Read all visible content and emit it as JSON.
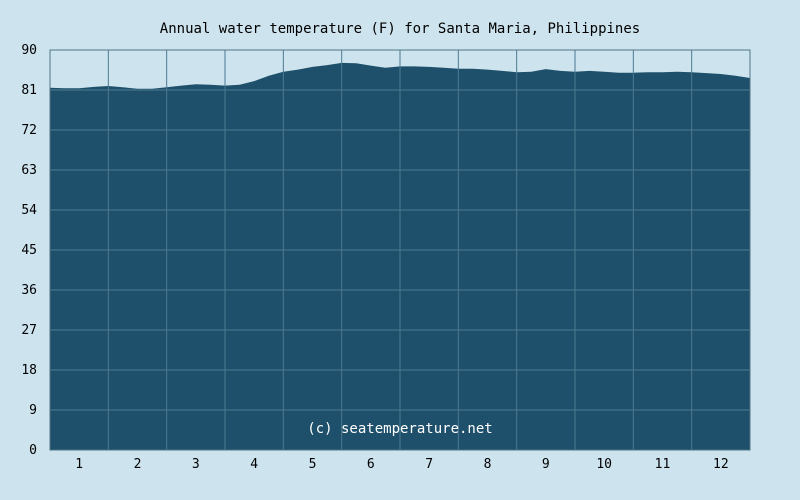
{
  "chart_data": {
    "type": "area",
    "title": "Annual water temperature (F) for Santa Maria, Philippines",
    "xlabel": "",
    "ylabel": "",
    "ylim": [
      0,
      90
    ],
    "y_ticks": [
      0,
      9,
      18,
      27,
      36,
      45,
      54,
      63,
      72,
      81,
      90
    ],
    "categories": [
      "1",
      "2",
      "3",
      "4",
      "5",
      "6",
      "7",
      "8",
      "9",
      "10",
      "11",
      "12"
    ],
    "grid": true,
    "series": [
      {
        "x": [
          0.5,
          0.75,
          1.0,
          1.25,
          1.5,
          1.75,
          2.0,
          2.25,
          2.5,
          2.75,
          3.0,
          3.25,
          3.5,
          3.75,
          4.0,
          4.25,
          4.5,
          4.75,
          5.0,
          5.25,
          5.5,
          5.75,
          6.0,
          6.25,
          6.5,
          6.75,
          7.0,
          7.25,
          7.5,
          7.75,
          8.0,
          8.25,
          8.5,
          8.75,
          9.0,
          9.25,
          9.5,
          9.75,
          10.0,
          10.25,
          10.5,
          10.75,
          11.0,
          11.25,
          11.5,
          11.75,
          12.0,
          12.25,
          12.5
        ],
        "values": [
          81.5,
          81.4,
          81.4,
          81.7,
          81.9,
          81.6,
          81.3,
          81.3,
          81.6,
          82.0,
          82.3,
          82.2,
          82.0,
          82.2,
          83.0,
          84.2,
          85.1,
          85.6,
          86.2,
          86.6,
          87.1,
          87.0,
          86.5,
          86.0,
          86.3,
          86.3,
          86.2,
          86.0,
          85.8,
          85.8,
          85.6,
          85.3,
          85.0,
          85.1,
          85.7,
          85.3,
          85.1,
          85.3,
          85.1,
          84.9,
          84.9,
          85.0,
          85.0,
          85.1,
          85.0,
          84.8,
          84.6,
          84.2,
          83.7
        ]
      }
    ],
    "watermark": "(c) seatemperature.net",
    "colors": {
      "background": "#cde3ee",
      "plot_fill": "#1f506b",
      "grid": "#4d7a92",
      "frame": "#4f7485"
    }
  }
}
